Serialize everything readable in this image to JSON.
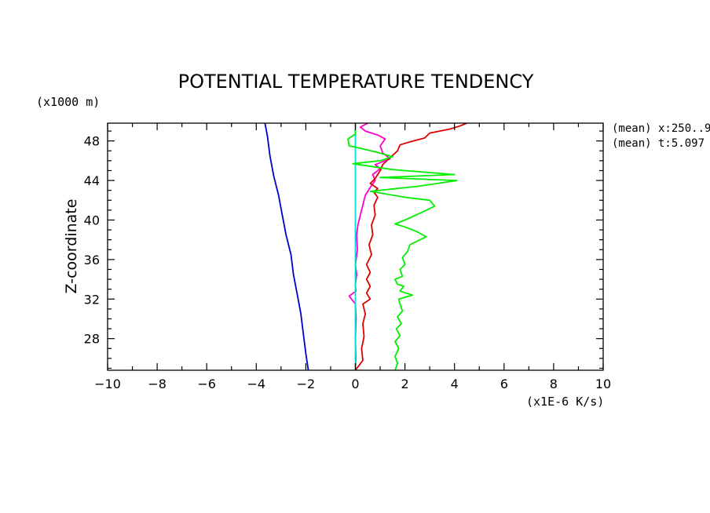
{
  "chart_data": {
    "type": "line",
    "title": "POTENTIAL TEMPERATURE TENDENCY",
    "xlabel": "(x1E-6 K/s)",
    "ylabel": "Z-coordinate",
    "y_unit": "(x1000 m)",
    "xlim": [
      -10,
      10
    ],
    "ylim": [
      24.8,
      49.8
    ],
    "x_ticks": [
      -10,
      -8,
      -6,
      -4,
      -2,
      0,
      2,
      4,
      6,
      8,
      10
    ],
    "y_ticks": [
      28,
      32,
      36,
      40,
      44,
      48
    ],
    "grid": false,
    "annotations": [
      "(mean) x:250..9",
      "(mean) t:5.097"
    ],
    "colors": [
      "#0000cc",
      "#ff00cc",
      "#00dddd",
      "#dd0000",
      "#00ee00"
    ],
    "series": [
      {
        "color": "#0000cc",
        "points": [
          [
            -1.9,
            24.8
          ],
          [
            -2.0,
            26.5
          ],
          [
            -2.1,
            28.5
          ],
          [
            -2.2,
            30.5
          ],
          [
            -2.35,
            32.5
          ],
          [
            -2.5,
            34.5
          ],
          [
            -2.6,
            36.5
          ],
          [
            -2.8,
            38.5
          ],
          [
            -2.95,
            40.5
          ],
          [
            -3.1,
            42.5
          ],
          [
            -3.3,
            44.5
          ],
          [
            -3.45,
            46.5
          ],
          [
            -3.55,
            48.5
          ],
          [
            -3.65,
            49.8
          ]
        ]
      },
      {
        "color": "#ff00cc",
        "points": [
          [
            0.0,
            24.8
          ],
          [
            0.02,
            26
          ],
          [
            0.0,
            28
          ],
          [
            0.03,
            30
          ],
          [
            0.0,
            31.5
          ],
          [
            -0.25,
            32.3
          ],
          [
            0.02,
            32.8
          ],
          [
            0.0,
            33.5
          ],
          [
            0.05,
            34.5
          ],
          [
            0.0,
            35.5
          ],
          [
            0.08,
            37
          ],
          [
            0.05,
            38.5
          ],
          [
            0.1,
            39.5
          ],
          [
            0.2,
            40.5
          ],
          [
            0.3,
            41.5
          ],
          [
            0.4,
            42.5
          ],
          [
            0.6,
            43.3
          ],
          [
            0.8,
            44
          ],
          [
            0.7,
            44.6
          ],
          [
            1.0,
            45.2
          ],
          [
            0.8,
            45.6
          ],
          [
            1.4,
            46.2
          ],
          [
            1.1,
            46.8
          ],
          [
            1.0,
            47.5
          ],
          [
            1.2,
            48.2
          ],
          [
            0.9,
            48.6
          ],
          [
            0.4,
            49.0
          ],
          [
            0.2,
            49.4
          ],
          [
            0.5,
            49.8
          ]
        ]
      },
      {
        "color": "#00dddd",
        "points": [
          [
            0.0,
            24.8
          ],
          [
            0.0,
            49.8
          ]
        ]
      },
      {
        "color": "#dd0000",
        "points": [
          [
            0.0,
            24.8
          ],
          [
            0.3,
            25.8
          ],
          [
            0.25,
            27
          ],
          [
            0.35,
            28.2
          ],
          [
            0.3,
            29.5
          ],
          [
            0.4,
            30.5
          ],
          [
            0.3,
            31.5
          ],
          [
            0.6,
            32.0
          ],
          [
            0.45,
            32.6
          ],
          [
            0.6,
            33.3
          ],
          [
            0.45,
            34
          ],
          [
            0.6,
            34.7
          ],
          [
            0.45,
            35.5
          ],
          [
            0.65,
            36.5
          ],
          [
            0.55,
            37.5
          ],
          [
            0.7,
            38.5
          ],
          [
            0.65,
            39.5
          ],
          [
            0.8,
            40.5
          ],
          [
            0.75,
            41.5
          ],
          [
            0.9,
            42.3
          ],
          [
            0.75,
            42.8
          ],
          [
            0.9,
            43.2
          ],
          [
            0.6,
            43.7
          ],
          [
            0.8,
            44.2
          ],
          [
            1.0,
            45.0
          ],
          [
            1.1,
            45.6
          ],
          [
            1.4,
            46.3
          ],
          [
            1.7,
            47.0
          ],
          [
            1.8,
            47.6
          ],
          [
            2.2,
            47.9
          ],
          [
            2.8,
            48.3
          ],
          [
            3.0,
            48.8
          ],
          [
            3.8,
            49.2
          ],
          [
            4.2,
            49.5
          ],
          [
            4.5,
            49.8
          ]
        ]
      },
      {
        "color": "#00ee00",
        "points": [
          [
            1.6,
            24.8
          ],
          [
            1.7,
            25.5
          ],
          [
            1.6,
            26.2
          ],
          [
            1.75,
            27
          ],
          [
            1.6,
            27.7
          ],
          [
            1.8,
            28.3
          ],
          [
            1.65,
            29
          ],
          [
            1.85,
            29.5
          ],
          [
            1.7,
            30.2
          ],
          [
            1.9,
            30.8
          ],
          [
            1.8,
            31.5
          ],
          [
            1.75,
            32.0
          ],
          [
            2.3,
            32.4
          ],
          [
            1.8,
            32.8
          ],
          [
            1.95,
            33.3
          ],
          [
            1.7,
            33.5
          ],
          [
            1.6,
            34.0
          ],
          [
            1.9,
            34.3
          ],
          [
            1.8,
            35.0
          ],
          [
            2.0,
            35.5
          ],
          [
            1.9,
            36.2
          ],
          [
            2.1,
            36.8
          ],
          [
            2.2,
            37.5
          ],
          [
            2.85,
            38.3
          ],
          [
            2.5,
            38.8
          ],
          [
            2.0,
            39.3
          ],
          [
            1.6,
            39.6
          ],
          [
            2.0,
            40.0
          ],
          [
            2.7,
            40.8
          ],
          [
            3.2,
            41.4
          ],
          [
            3.0,
            42.0
          ],
          [
            2.0,
            42.3
          ],
          [
            0.6,
            42.9
          ],
          [
            2.5,
            43.4
          ],
          [
            4.1,
            44.0
          ],
          [
            1.0,
            44.3
          ],
          [
            4.0,
            44.6
          ],
          [
            1.5,
            45.1
          ],
          [
            -0.1,
            45.7
          ],
          [
            1.0,
            46.0
          ],
          [
            1.5,
            46.4
          ],
          [
            0.8,
            46.9
          ],
          [
            0.3,
            47.2
          ],
          [
            -0.25,
            47.5
          ],
          [
            -0.3,
            48.2
          ],
          [
            0.0,
            48.7
          ],
          [
            0.0,
            49.8
          ]
        ]
      }
    ]
  }
}
